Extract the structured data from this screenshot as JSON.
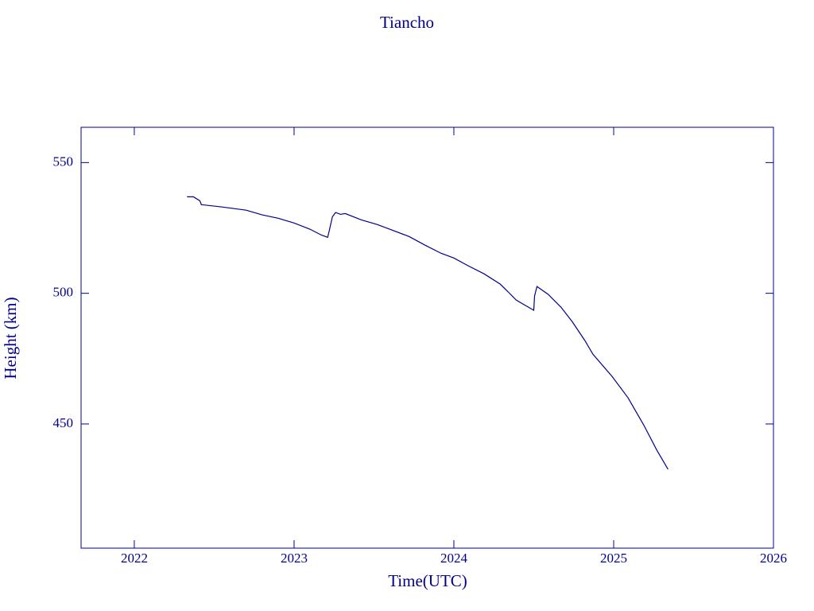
{
  "chart_data": {
    "type": "line",
    "title": "Tiancho",
    "xlabel": "Time(UTC)",
    "ylabel": "Height (km)",
    "color": "#00008b",
    "x": [
      2022.33,
      2022.37,
      2022.41,
      2022.42,
      2022.55,
      2022.7,
      2022.8,
      2022.9,
      2023.0,
      2023.1,
      2023.17,
      2023.21,
      2023.22,
      2023.24,
      2023.26,
      2023.29,
      2023.32,
      2023.42,
      2023.52,
      2023.6,
      2023.72,
      2023.82,
      2023.92,
      2024.0,
      2024.09,
      2024.19,
      2024.29,
      2024.34,
      2024.39,
      2024.5,
      2024.505,
      2024.52,
      2024.59,
      2024.67,
      2024.74,
      2024.82,
      2024.87,
      2024.99,
      2025.09,
      2025.19,
      2025.27,
      2025.34
    ],
    "values": [
      536.9,
      536.9,
      535.4,
      533.9,
      533.0,
      531.8,
      530.0,
      528.7,
      526.9,
      524.5,
      522.3,
      521.4,
      523.9,
      529.3,
      530.9,
      530.2,
      530.5,
      528.1,
      526.3,
      524.5,
      521.7,
      518.4,
      515.3,
      513.5,
      510.5,
      507.4,
      503.5,
      500.5,
      497.4,
      493.5,
      499.0,
      502.6,
      499.6,
      494.7,
      489.2,
      481.9,
      476.7,
      468.2,
      460.0,
      449.4,
      440.0,
      432.7
    ],
    "xlim": [
      2021.667,
      2026
    ],
    "xticks": [
      2022,
      2023,
      2024,
      2025,
      2026
    ],
    "ylim": [
      402.5,
      563.5
    ],
    "yticks": [
      450,
      500,
      550
    ]
  }
}
